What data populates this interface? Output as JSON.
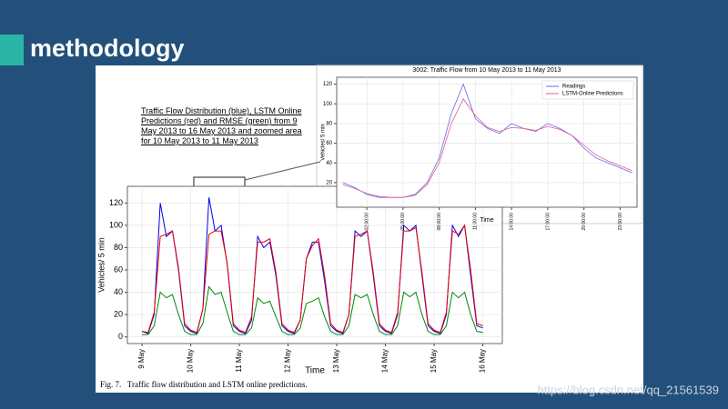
{
  "slide": {
    "title": "methodology",
    "watermark": "https://blog.csdn.net/qq_21561539"
  },
  "figure": {
    "annotation": "Traffic Flow Distribution (blue), LSTM Online Predictions (red) and RMSE (green) from 9 May 2013 to 16 May 2013 and zoomed area for 10 May 2013 to 11 May 2013",
    "caption": "Fig. 7.   Traffic flow distribution and LSTM online predictions."
  },
  "chart_data": [
    {
      "type": "line",
      "xlabel": "Time",
      "ylabel": "Vehicles/ 5 min",
      "grid": true,
      "xlim": [
        -0.3,
        7.4
      ],
      "ylim": [
        -6,
        135
      ],
      "xticks": [
        {
          "value": 0,
          "label": "9 May"
        },
        {
          "value": 1,
          "label": "10 May"
        },
        {
          "value": 2,
          "label": "11 May"
        },
        {
          "value": 3,
          "label": "12 May"
        },
        {
          "value": 4,
          "label": "13 May"
        },
        {
          "value": 5,
          "label": "14 May"
        },
        {
          "value": 6,
          "label": "15 May"
        },
        {
          "value": 7,
          "label": "16 May"
        }
      ],
      "yticks": [
        0,
        20,
        40,
        60,
        80,
        100,
        120
      ],
      "x": [
        0,
        0.125,
        0.25,
        0.375,
        0.5,
        0.625,
        0.75,
        0.875,
        1,
        1.125,
        1.25,
        1.375,
        1.5,
        1.625,
        1.75,
        1.875,
        2,
        2.125,
        2.25,
        2.375,
        2.5,
        2.625,
        2.75,
        2.875,
        3,
        3.125,
        3.25,
        3.375,
        3.5,
        3.625,
        3.75,
        3.875,
        4,
        4.125,
        4.25,
        4.375,
        4.5,
        4.625,
        4.75,
        4.875,
        5,
        5.125,
        5.25,
        5.375,
        5.5,
        5.625,
        5.75,
        5.875,
        6,
        6.125,
        6.25,
        6.375,
        6.5,
        6.625,
        6.75,
        6.875,
        7
      ],
      "series": [
        {
          "color": "#0000ee",
          "values": [
            5,
            3,
            20,
            120,
            90,
            95,
            60,
            10,
            5,
            3,
            25,
            125,
            95,
            100,
            65,
            10,
            5,
            3,
            15,
            90,
            80,
            85,
            55,
            10,
            5,
            3,
            15,
            70,
            85,
            85,
            50,
            10,
            5,
            3,
            20,
            95,
            90,
            95,
            55,
            10,
            5,
            3,
            20,
            100,
            95,
            100,
            55,
            10,
            5,
            3,
            20,
            100,
            90,
            100,
            55,
            10,
            8
          ]
        },
        {
          "color": "#ee0000",
          "values": [
            5,
            4,
            22,
            90,
            92,
            95,
            62,
            12,
            6,
            4,
            25,
            92,
            95,
            95,
            66,
            12,
            6,
            4,
            18,
            85,
            85,
            88,
            58,
            12,
            6,
            4,
            15,
            70,
            82,
            88,
            55,
            12,
            6,
            4,
            20,
            90,
            92,
            95,
            58,
            12,
            6,
            4,
            22,
            95,
            95,
            98,
            58,
            12,
            6,
            4,
            22,
            95,
            92,
            100,
            60,
            12,
            10
          ]
        },
        {
          "color": "#008800",
          "values": [
            2,
            2,
            10,
            40,
            35,
            38,
            20,
            5,
            2,
            2,
            12,
            45,
            38,
            40,
            22,
            5,
            2,
            2,
            8,
            35,
            30,
            32,
            18,
            5,
            2,
            2,
            8,
            30,
            32,
            35,
            18,
            5,
            2,
            2,
            10,
            38,
            35,
            38,
            20,
            5,
            2,
            2,
            10,
            40,
            36,
            40,
            20,
            5,
            2,
            2,
            10,
            40,
            35,
            40,
            20,
            5,
            4
          ]
        }
      ]
    },
    {
      "type": "line",
      "title": "3002: Traffic Flow from 10 May 2013 to 11 May 2013",
      "xlabel": "Time",
      "ylabel": "Vehicles/ 5 min",
      "grid": true,
      "legend": "upper right",
      "xlim": [
        -0.5,
        24.4
      ],
      "ylim": [
        -5,
        127
      ],
      "xticks": [
        {
          "value": 2,
          "label": "02:00:00"
        },
        {
          "value": 5,
          "label": "05:00:00"
        },
        {
          "value": 8,
          "label": "08:00:00"
        },
        {
          "value": 11,
          "label": "11:00:00"
        },
        {
          "value": 14,
          "label": "14:00:00"
        },
        {
          "value": 17,
          "label": "17:00:00"
        },
        {
          "value": 20,
          "label": "20:00:00"
        },
        {
          "value": 23,
          "label": "23:00:00"
        }
      ],
      "yticks": [
        20,
        40,
        60,
        80,
        100,
        120
      ],
      "x": [
        0,
        1,
        2,
        3,
        4,
        5,
        6,
        7,
        8,
        9,
        10,
        11,
        12,
        13,
        14,
        15,
        16,
        17,
        18,
        19,
        20,
        21,
        22,
        23,
        24
      ],
      "series": [
        {
          "name": "Readings",
          "color": "#6666ee",
          "values": [
            20,
            15,
            8,
            5,
            5,
            5,
            8,
            20,
            45,
            90,
            120,
            85,
            75,
            70,
            80,
            75,
            72,
            80,
            75,
            68,
            55,
            45,
            40,
            35,
            30
          ]
        },
        {
          "name": "LSTM-Online Predictions",
          "color": "#e0608a",
          "values": [
            18,
            14,
            9,
            6,
            5,
            5,
            7,
            18,
            40,
            80,
            105,
            88,
            76,
            72,
            76,
            75,
            73,
            77,
            74,
            68,
            58,
            48,
            42,
            37,
            32
          ]
        }
      ]
    }
  ]
}
